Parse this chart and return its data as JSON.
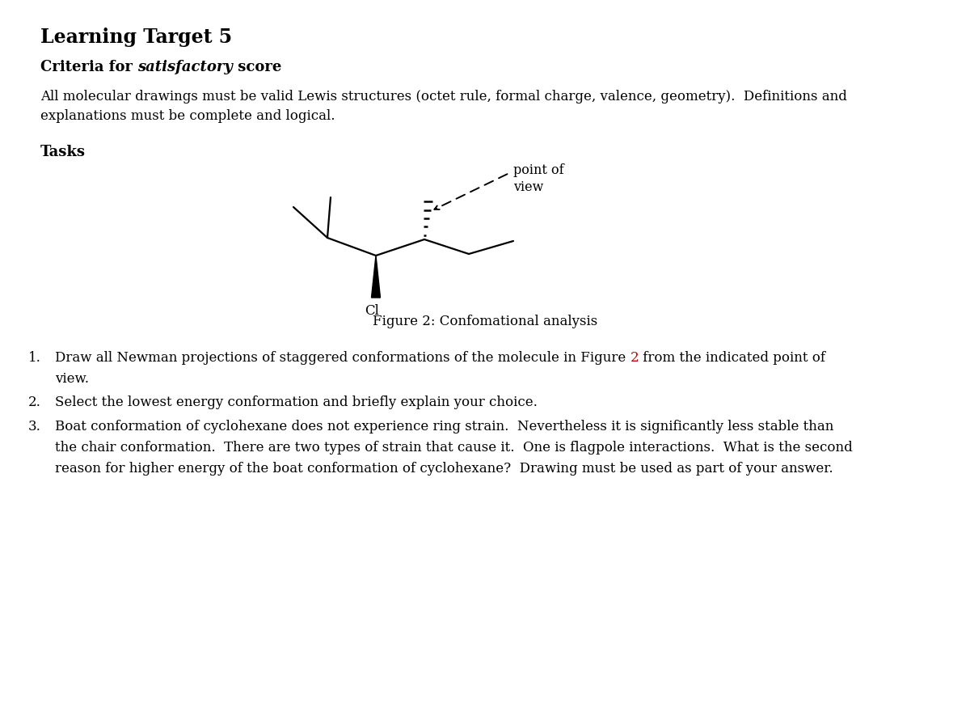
{
  "title": "Learning Target 5",
  "criteria_text_normal1": "Criteria for ",
  "criteria_text_italic": "satisfactory",
  "criteria_text_normal2": " score",
  "body_text": "All molecular drawings must be valid Lewis structures (octet rule, formal charge, valence, geometry).  Definitions and\nexplanations must be complete and logical.",
  "tasks_header": "Tasks",
  "figure_caption": "Figure 2: Confomational analysis",
  "item1_part1": "Draw all Newman projections of staggered conformations of the molecule in Figure ",
  "item1_fig_num": "2",
  "item1_part2": " from the indicated point of",
  "item1_line2": "view.",
  "item2": "Select the lowest energy conformation and briefly explain your choice.",
  "item3_line1": "Boat conformation of cyclohexane does not experience ring strain.  Nevertheless it is significantly less stable than",
  "item3_line2": "the chair conformation.  There are two types of strain that cause it.  One is flagpole interactions.  What is the second",
  "item3_line3": "reason for higher energy of the boat conformation of cyclohexane?  Drawing must be used as part of your answer.",
  "point_of_view": "point of\nview",
  "Cl_label": "Cl",
  "background_color": "#ffffff",
  "text_color": "#000000",
  "red_color": "#cc0000"
}
